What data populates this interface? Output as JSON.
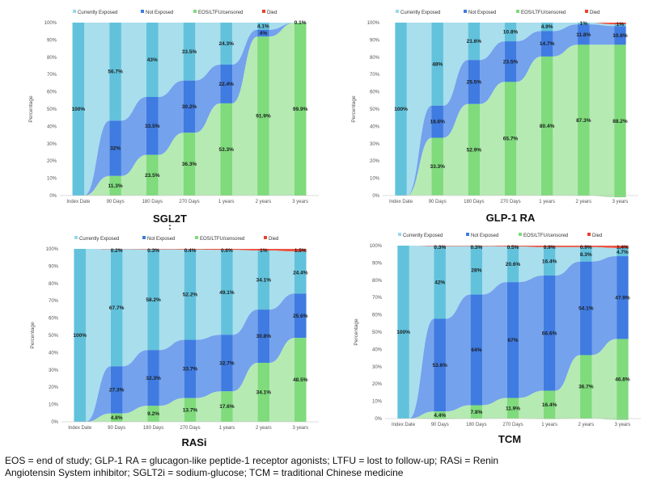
{
  "colors": {
    "currently_exposed": "#9ad8ea",
    "currently_exposed_bar": "#62c2dc",
    "not_exposed": "#5c92ea",
    "not_exposed_bar": "#3f7be0",
    "eos": "#a9e6a6",
    "eos_bar": "#7fdb7c",
    "died": "#e8432f"
  },
  "legend": {
    "items": [
      "Currently Exposed",
      "Not Exposed",
      "EOS/LTFU/censored",
      "Died"
    ],
    "placement": "top"
  },
  "footnote": {
    "line1": "EOS = end of study; GLP-1 RA = glucagon-like peptide-1 receptor agonists; LTFU = lost to follow-up; RASi = Renin",
    "line2": "Angiotensin System inhibitor; SGLT2i = sodium-glucose; TCM = traditional Chinese medicine"
  },
  "chart_data": [
    {
      "type": "area",
      "title": "SGL2T",
      "title_marker": ":",
      "ylabel": "Percentage",
      "ylim": [
        0,
        100
      ],
      "yticks": [
        "0%",
        "10%",
        "20%",
        "30%",
        "40%",
        "50%",
        "60%",
        "70%",
        "80%",
        "90%",
        "100%"
      ],
      "categories": [
        "Index Date",
        "90 Days",
        "180 Days",
        "270 Days",
        "1 years",
        "2 years",
        "3 years"
      ],
      "series": [
        {
          "name": "Currently Exposed",
          "values": [
            100,
            56.7,
            43,
            33.5,
            24.3,
            4.1,
            0.1
          ]
        },
        {
          "name": "Not Exposed",
          "values": [
            0,
            32,
            33.5,
            30.2,
            22.4,
            4.0,
            0
          ]
        },
        {
          "name": "EOS/LTFU/censored",
          "values": [
            0,
            11.3,
            23.5,
            36.3,
            53.3,
            91.9,
            99.9
          ]
        },
        {
          "name": "Died",
          "values": [
            0,
            0,
            0,
            0,
            0,
            0,
            0
          ]
        }
      ],
      "labels": [
        {
          "cat": 0,
          "series": 0,
          "text": "100%"
        },
        {
          "cat": 1,
          "series": 0,
          "text": "56.7%"
        },
        {
          "cat": 1,
          "series": 1,
          "text": "32%"
        },
        {
          "cat": 1,
          "series": 2,
          "text": "11.3%"
        },
        {
          "cat": 2,
          "series": 0,
          "text": "43%"
        },
        {
          "cat": 2,
          "series": 1,
          "text": "33.5%"
        },
        {
          "cat": 2,
          "series": 2,
          "text": "23.5%"
        },
        {
          "cat": 3,
          "series": 0,
          "text": "33.5%"
        },
        {
          "cat": 3,
          "series": 1,
          "text": "30.2%"
        },
        {
          "cat": 3,
          "series": 2,
          "text": "36.3%"
        },
        {
          "cat": 4,
          "series": 0,
          "text": "24.3%"
        },
        {
          "cat": 4,
          "series": 1,
          "text": "22.4%"
        },
        {
          "cat": 4,
          "series": 2,
          "text": "53.3%"
        },
        {
          "cat": 5,
          "series": 0,
          "text": "4.1%"
        },
        {
          "cat": 5,
          "series": 1,
          "text": "4%"
        },
        {
          "cat": 5,
          "series": 2,
          "text": "91.9%"
        },
        {
          "cat": 6,
          "series": 0,
          "text": "0.1%"
        },
        {
          "cat": 6,
          "series": 2,
          "text": "99.9%"
        }
      ]
    },
    {
      "type": "area",
      "title": "GLP-1 RA",
      "ylabel": "Percentage",
      "ylim": [
        0,
        100
      ],
      "yticks": [
        "0%",
        "10%",
        "20%",
        "30%",
        "40%",
        "50%",
        "60%",
        "70%",
        "80%",
        "90%",
        "100%"
      ],
      "categories": [
        "Index Date",
        "90 Days",
        "180 Days",
        "270 Days",
        "1 years",
        "2 years",
        "3 years"
      ],
      "series": [
        {
          "name": "Currently Exposed",
          "values": [
            100,
            48,
            21.6,
            10.8,
            4.9,
            1,
            1
          ]
        },
        {
          "name": "Not Exposed",
          "values": [
            0,
            18.6,
            25.5,
            23.5,
            14.7,
            11.8,
            10.8
          ]
        },
        {
          "name": "EOS/LTFU/censored",
          "values": [
            0,
            33.3,
            52.9,
            65.7,
            80.4,
            87.3,
            88.2
          ]
        },
        {
          "name": "Died",
          "values": [
            0,
            0,
            0,
            0,
            0,
            0,
            1
          ]
        }
      ],
      "labels": [
        {
          "cat": 0,
          "series": 0,
          "text": "100%"
        },
        {
          "cat": 1,
          "series": 0,
          "text": "48%"
        },
        {
          "cat": 1,
          "series": 1,
          "text": "18.6%"
        },
        {
          "cat": 1,
          "series": 2,
          "text": "33.3%"
        },
        {
          "cat": 2,
          "series": 0,
          "text": "21.6%"
        },
        {
          "cat": 2,
          "series": 1,
          "text": "25.5%"
        },
        {
          "cat": 2,
          "series": 2,
          "text": "52.9%"
        },
        {
          "cat": 3,
          "series": 0,
          "text": "10.8%"
        },
        {
          "cat": 3,
          "series": 1,
          "text": "23.5%"
        },
        {
          "cat": 3,
          "series": 2,
          "text": "65.7%"
        },
        {
          "cat": 4,
          "series": 0,
          "text": "4.9%"
        },
        {
          "cat": 4,
          "series": 1,
          "text": "14.7%"
        },
        {
          "cat": 4,
          "series": 2,
          "text": "80.4%"
        },
        {
          "cat": 5,
          "series": 0,
          "text": "1%"
        },
        {
          "cat": 5,
          "series": 1,
          "text": "11.8%"
        },
        {
          "cat": 5,
          "series": 2,
          "text": "87.3%"
        },
        {
          "cat": 6,
          "series": 3,
          "text": "1%"
        },
        {
          "cat": 6,
          "series": 1,
          "text": "10.8%"
        },
        {
          "cat": 6,
          "series": 2,
          "text": "88.2%"
        }
      ]
    },
    {
      "type": "area",
      "title": "RASi",
      "ylabel": "Percentage",
      "ylim": [
        0,
        100
      ],
      "yticks": [
        "0%",
        "10%",
        "20%",
        "30%",
        "40%",
        "50%",
        "60%",
        "70%",
        "80%",
        "90%",
        "100%"
      ],
      "categories": [
        "Index Date",
        "90 Days",
        "180 Days",
        "270 Days",
        "1 years",
        "2 years",
        "3 years"
      ],
      "series": [
        {
          "name": "Currently Exposed",
          "values": [
            100,
            67.7,
            58.2,
            52.2,
            49.1,
            34.1,
            24.4
          ]
        },
        {
          "name": "Not Exposed",
          "values": [
            0,
            27.3,
            32.3,
            33.7,
            32.7,
            30.8,
            25.6
          ]
        },
        {
          "name": "EOS/LTFU/censored",
          "values": [
            0,
            4.8,
            9.2,
            13.7,
            17.6,
            34.1,
            48.5
          ]
        },
        {
          "name": "Died",
          "values": [
            0,
            0.2,
            0.3,
            0.4,
            0.6,
            1,
            1.5
          ]
        }
      ],
      "labels": [
        {
          "cat": 0,
          "series": 0,
          "text": "100%"
        },
        {
          "cat": 1,
          "series": 3,
          "text": "0.2%"
        },
        {
          "cat": 1,
          "series": 0,
          "text": "67.7%"
        },
        {
          "cat": 1,
          "series": 1,
          "text": "27.3%"
        },
        {
          "cat": 1,
          "series": 2,
          "text": "4.8%"
        },
        {
          "cat": 2,
          "series": 3,
          "text": "0.3%"
        },
        {
          "cat": 2,
          "series": 0,
          "text": "58.2%"
        },
        {
          "cat": 2,
          "series": 1,
          "text": "32.3%"
        },
        {
          "cat": 2,
          "series": 2,
          "text": "9.2%"
        },
        {
          "cat": 3,
          "series": 3,
          "text": "0.4%"
        },
        {
          "cat": 3,
          "series": 0,
          "text": "52.2%"
        },
        {
          "cat": 3,
          "series": 1,
          "text": "33.7%"
        },
        {
          "cat": 3,
          "series": 2,
          "text": "13.7%"
        },
        {
          "cat": 4,
          "series": 3,
          "text": "0.6%"
        },
        {
          "cat": 4,
          "series": 0,
          "text": "49.1%"
        },
        {
          "cat": 4,
          "series": 1,
          "text": "32.7%"
        },
        {
          "cat": 4,
          "series": 2,
          "text": "17.6%"
        },
        {
          "cat": 5,
          "series": 3,
          "text": "1%"
        },
        {
          "cat": 5,
          "series": 0,
          "text": "34.1%"
        },
        {
          "cat": 5,
          "series": 1,
          "text": "30.8%"
        },
        {
          "cat": 5,
          "series": 2,
          "text": "34.1%"
        },
        {
          "cat": 6,
          "series": 3,
          "text": "1.5%"
        },
        {
          "cat": 6,
          "series": 0,
          "text": "24.4%"
        },
        {
          "cat": 6,
          "series": 1,
          "text": "25.6%"
        },
        {
          "cat": 6,
          "series": 2,
          "text": "48.5%"
        }
      ]
    },
    {
      "type": "area",
      "title": "TCM",
      "ylabel": "Percentage",
      "ylim": [
        0,
        100
      ],
      "yticks": [
        "0%",
        "10%",
        "20%",
        "30%",
        "40%",
        "50%",
        "60%",
        "70%",
        "80%",
        "90%",
        "100%"
      ],
      "categories": [
        "Index Date",
        "90 Days",
        "180 Days",
        "270 Days",
        "1 years",
        "2 years",
        "3 years"
      ],
      "series": [
        {
          "name": "Currently Exposed",
          "values": [
            100,
            42,
            28,
            20.6,
            16.4,
            8.3,
            4.7
          ]
        },
        {
          "name": "Not Exposed",
          "values": [
            0,
            53.6,
            64,
            67,
            66.6,
            54.1,
            47.9
          ]
        },
        {
          "name": "EOS/LTFU/censored",
          "values": [
            0,
            4.4,
            7.8,
            11.9,
            16.4,
            36.7,
            46.8
          ]
        },
        {
          "name": "Died",
          "values": [
            0,
            0.3,
            0.3,
            0.5,
            0.9,
            0.9,
            1.4
          ]
        }
      ],
      "labels": [
        {
          "cat": 0,
          "series": 0,
          "text": "100%"
        },
        {
          "cat": 1,
          "series": 3,
          "text": "0.3%"
        },
        {
          "cat": 1,
          "series": 0,
          "text": "42%"
        },
        {
          "cat": 1,
          "series": 1,
          "text": "53.6%"
        },
        {
          "cat": 1,
          "series": 2,
          "text": "4.4%"
        },
        {
          "cat": 2,
          "series": 3,
          "text": "0.3%"
        },
        {
          "cat": 2,
          "series": 0,
          "text": "28%"
        },
        {
          "cat": 2,
          "series": 1,
          "text": "64%"
        },
        {
          "cat": 2,
          "series": 2,
          "text": "7.8%"
        },
        {
          "cat": 3,
          "series": 3,
          "text": "0.5%"
        },
        {
          "cat": 3,
          "series": 0,
          "text": "20.6%"
        },
        {
          "cat": 3,
          "series": 1,
          "text": "67%"
        },
        {
          "cat": 3,
          "series": 2,
          "text": "11.9%"
        },
        {
          "cat": 4,
          "series": 3,
          "text": "0.9%"
        },
        {
          "cat": 4,
          "series": 0,
          "text": "16.4%"
        },
        {
          "cat": 4,
          "series": 1,
          "text": "66.6%"
        },
        {
          "cat": 4,
          "series": 2,
          "text": "16.4%"
        },
        {
          "cat": 5,
          "series": 3,
          "text": "0.9%"
        },
        {
          "cat": 5,
          "series": 0,
          "text": "8.3%"
        },
        {
          "cat": 5,
          "series": 1,
          "text": "54.1%"
        },
        {
          "cat": 5,
          "series": 2,
          "text": "36.7%"
        },
        {
          "cat": 6,
          "series": 3,
          "text": "1.4%"
        },
        {
          "cat": 6,
          "series": 0,
          "text": "4.7%"
        },
        {
          "cat": 6,
          "series": 1,
          "text": "47.9%"
        },
        {
          "cat": 6,
          "series": 2,
          "text": "46.8%"
        }
      ]
    }
  ]
}
